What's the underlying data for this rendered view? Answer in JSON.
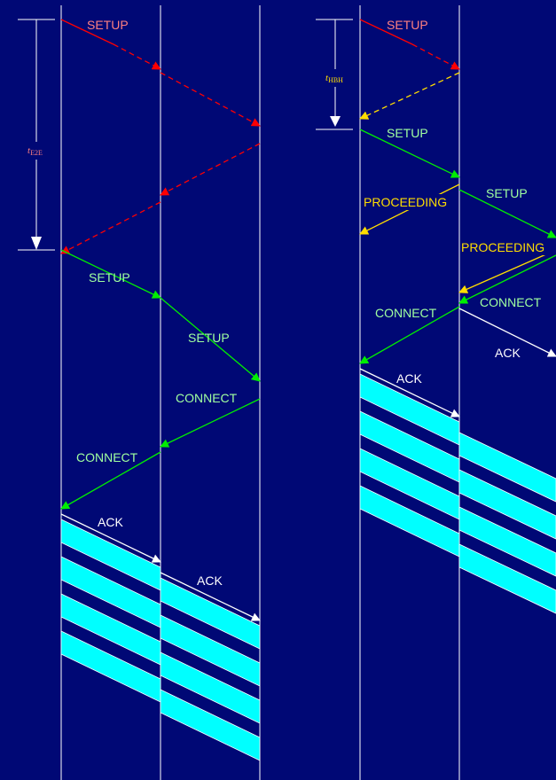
{
  "colors": {
    "background": "#000875",
    "node_line": "#ffffff",
    "setup_phase": "#ff0000",
    "setup_label": "#ff8080",
    "signal": "#00dd00",
    "signal_label": "#a0ffa0",
    "hop_ack": "#ffdd00",
    "hop_ack_label": "#ffdd00",
    "ack": "#ffffff",
    "data_band": "#00ffff",
    "timer": "#ffffff"
  },
  "left_diagram": {
    "timer": {
      "symbol": "t",
      "subscript": "E2E"
    },
    "messages": {
      "setup_initial": "SETUP",
      "setup_1": "SETUP",
      "setup_2": "SETUP",
      "connect_1": "CONNECT",
      "connect_2": "CONNECT",
      "ack_1": "ACK",
      "ack_2": "ACK"
    }
  },
  "right_diagram": {
    "timer": {
      "symbol": "t",
      "subscript": "HBH"
    },
    "messages": {
      "setup_initial": "SETUP",
      "setup_1": "SETUP",
      "setup_2": "SETUP",
      "proceeding_1": "PROCEEDING",
      "proceeding_2": "PROCEEDING",
      "connect_1": "CONNECT",
      "connect_2": "CONNECT",
      "ack_1": "ACK",
      "ack_2": "ACK"
    }
  }
}
